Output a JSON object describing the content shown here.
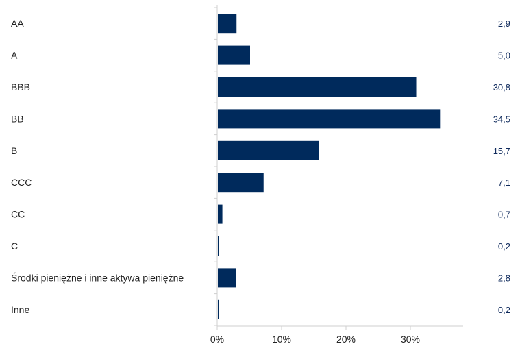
{
  "colors": {
    "bar": "#002a5c",
    "value_text": "#0f2a5c",
    "axis": "#cfcfcf",
    "label_text": "#222222"
  },
  "chart_data": {
    "type": "bar",
    "orientation": "horizontal",
    "categories": [
      "AA",
      "A",
      "BBB",
      "BB",
      "B",
      "CCC",
      "CC",
      "C",
      "Środki pieniężne i inne aktywa pieniężne",
      "Inne"
    ],
    "values": [
      2.9,
      5.0,
      30.8,
      34.5,
      15.7,
      7.1,
      0.7,
      0.2,
      2.8,
      0.2
    ],
    "value_labels": [
      "2,9",
      "5,0",
      "30,8",
      "34,5",
      "15,7",
      "7,1",
      "0,7",
      "0,2",
      "2,8",
      "0,2"
    ],
    "xlim": [
      0,
      40
    ],
    "x_ticks": [
      0,
      10,
      20,
      30
    ],
    "x_tick_labels": [
      "0%",
      "10%",
      "20%",
      "30%"
    ],
    "grid": false,
    "legend": "none",
    "title": "",
    "xlabel": "",
    "ylabel": ""
  }
}
